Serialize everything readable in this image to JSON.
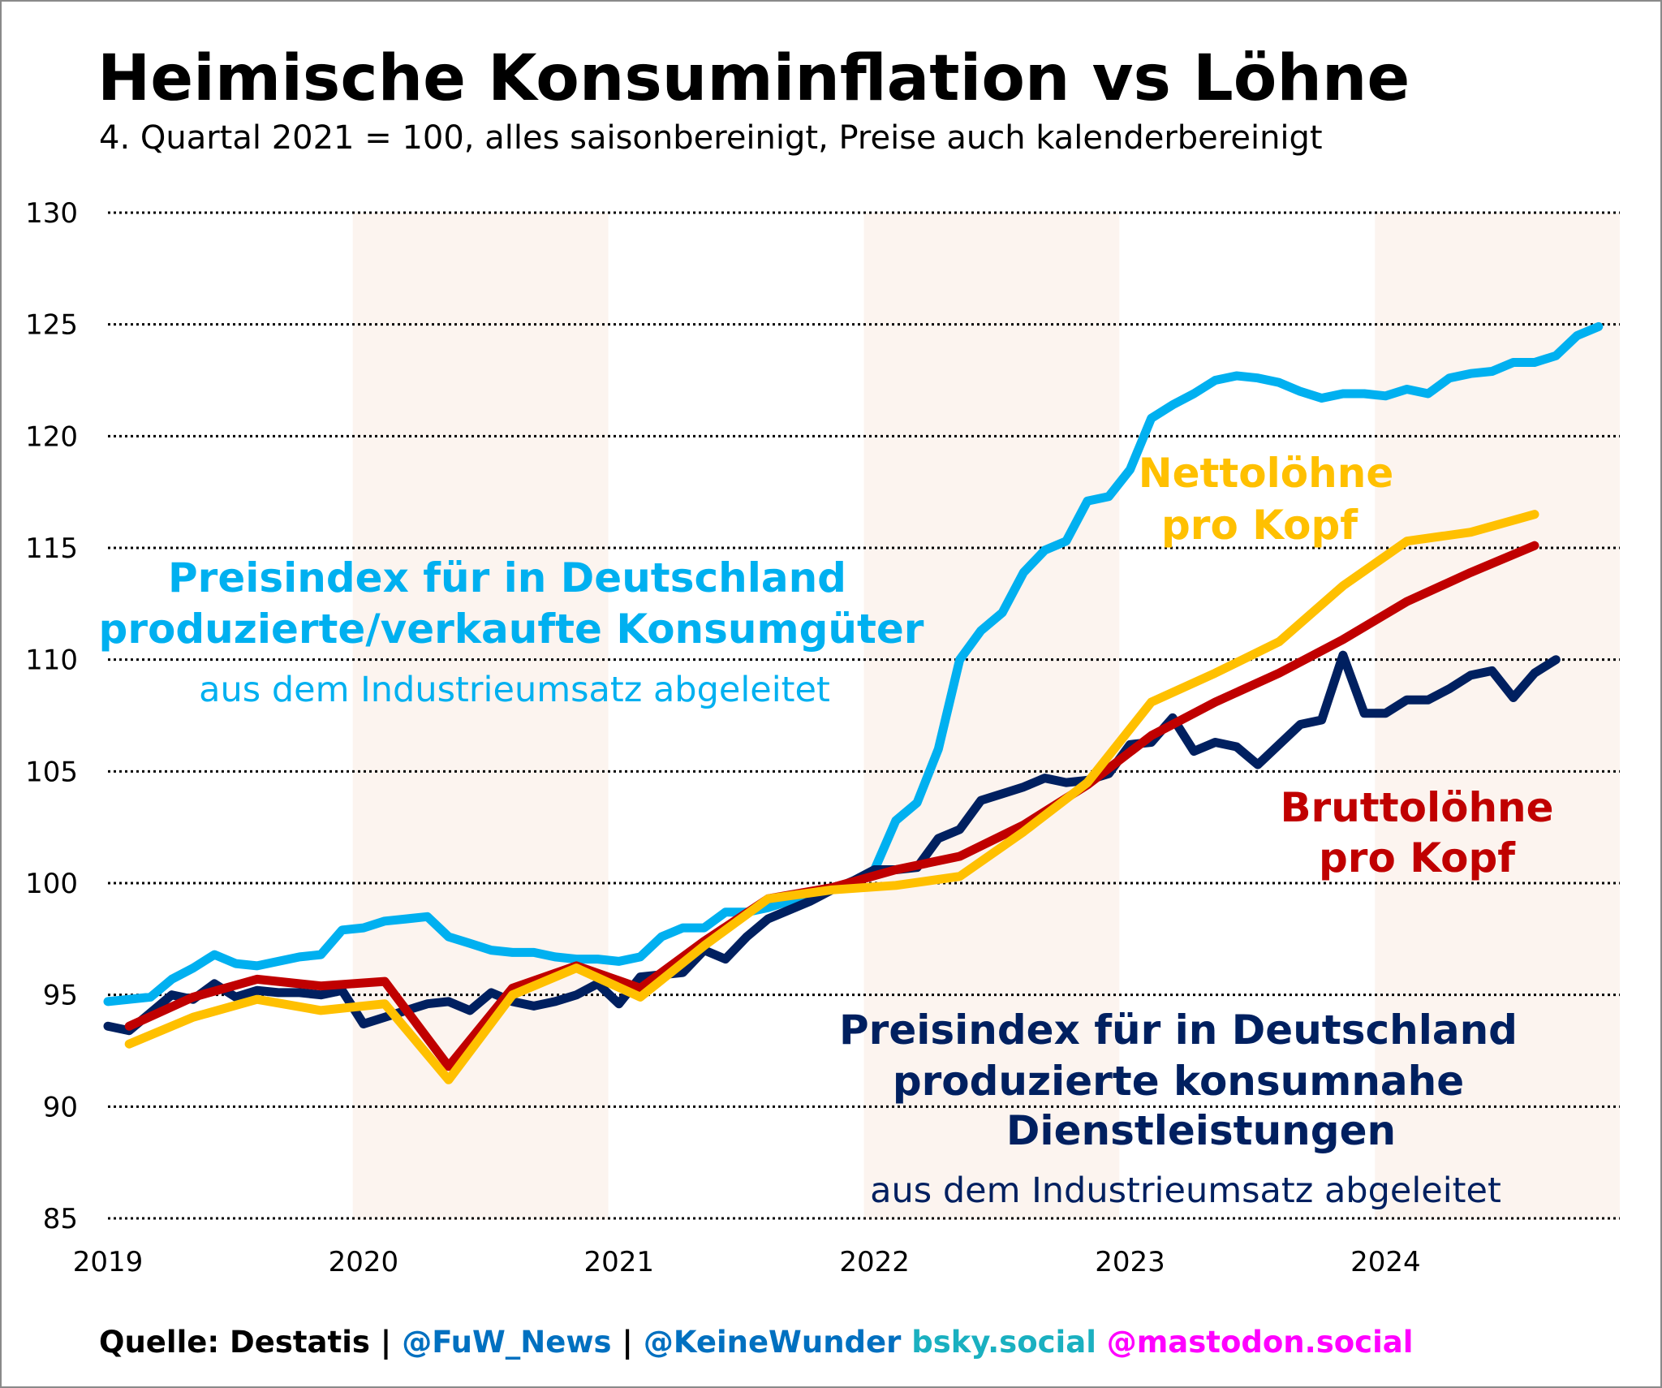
{
  "title": "Heimische Konsuminflation vs Löhne",
  "subtitle": "4. Quartal 2021 = 100, alles saisonbereinigt, Preise auch kalenderbereinigt",
  "footer": {
    "source": "Quelle: Destatis",
    "sep1": " | ",
    "handle1": "@FuW_News",
    "sep2": " | ",
    "handle2": "@KeineWunder",
    "bsky": " bsky.social",
    "mastodon": " @mastodon.social"
  },
  "colors": {
    "consumer_goods": "#00B0F0",
    "services": "#002060",
    "gross_wages": "#C00000",
    "net_wages": "#FFC000",
    "shading": "#FCF4EF",
    "handle": "#0070C0",
    "bsky": "#1AB0C0",
    "mastodon": "#FF00FF"
  },
  "annotations": {
    "consumer_goods": [
      "Preisindex für in Deutschland",
      "produzierte/verkaufte Konsumgüter",
      "aus dem Industrieumsatz abgeleitet"
    ],
    "net_wages": [
      "Nettolöhne",
      "pro Kopf"
    ],
    "gross_wages": [
      "Bruttolöhne",
      "pro Kopf"
    ],
    "services": [
      "Preisindex für in Deutschland",
      "produzierte konsumnahe",
      "Dienstleistungen",
      "aus dem Industrieumsatz abgeleitet"
    ]
  },
  "chart_data": {
    "type": "line",
    "title": "Heimische Konsuminflation vs Löhne",
    "subtitle": "4. Quartal 2021 = 100, alles saisonbereinigt, Preise auch kalenderbereinigt",
    "xlabel": "",
    "ylabel": "",
    "ylim": [
      85,
      130
    ],
    "yticks": [
      130,
      125,
      120,
      115,
      110,
      105,
      100,
      95,
      90,
      85
    ],
    "xticks": [
      "2019",
      "2020",
      "2021",
      "2022",
      "2023",
      "2024"
    ],
    "xlim": [
      "2019-01",
      "2024-12"
    ],
    "grid": "horizontal dotted",
    "shaded_years": [
      "2020",
      "2022",
      "2024"
    ],
    "series": [
      {
        "key": "consumer_goods",
        "frequency": "monthly",
        "x_first": "2019-01",
        "values": [
          94.7,
          94.8,
          94.9,
          95.7,
          96.2,
          96.8,
          96.4,
          96.3,
          96.5,
          96.7,
          96.8,
          97.9,
          98.0,
          98.3,
          98.4,
          98.5,
          97.6,
          97.3,
          97.0,
          96.9,
          96.9,
          96.7,
          96.6,
          96.6,
          96.5,
          96.7,
          97.6,
          98.0,
          98.0,
          98.7,
          98.7,
          98.9,
          99.2,
          99.5,
          99.8,
          100.0,
          100.6,
          102.8,
          103.6,
          106.0,
          110.0,
          111.3,
          112.1,
          113.9,
          114.9,
          115.3,
          117.1,
          117.3,
          118.5,
          120.8,
          121.4,
          121.9,
          122.5,
          122.7,
          122.6,
          122.4,
          122.0,
          121.7,
          121.9,
          121.9,
          121.8,
          122.1,
          121.9,
          122.6,
          122.8,
          122.9,
          123.3,
          123.3,
          123.6,
          124.5,
          124.9
        ]
      },
      {
        "key": "services",
        "frequency": "monthly",
        "x_first": "2019-01",
        "values": [
          93.6,
          93.4,
          94.2,
          95.0,
          94.8,
          95.5,
          94.9,
          95.2,
          95.1,
          95.1,
          95.0,
          95.2,
          93.7,
          94.0,
          94.3,
          94.6,
          94.7,
          94.3,
          95.1,
          94.7,
          94.5,
          94.7,
          95.0,
          95.5,
          94.6,
          95.8,
          95.9,
          96.0,
          97.0,
          96.6,
          97.6,
          98.4,
          98.8,
          99.2,
          99.7,
          100.1,
          100.6,
          100.6,
          100.7,
          102.0,
          102.4,
          103.7,
          104.0,
          104.3,
          104.7,
          104.5,
          104.6,
          104.9,
          106.2,
          106.3,
          107.4,
          105.9,
          106.3,
          106.1,
          105.3,
          106.2,
          107.1,
          107.3,
          110.2,
          107.6,
          107.6,
          108.2,
          108.2,
          108.7,
          109.3,
          109.5,
          108.3,
          109.4,
          110.0
        ]
      },
      {
        "key": "gross_wages",
        "frequency": "quarterly",
        "x_first": "2019-Q1",
        "values": [
          93.6,
          94.9,
          95.7,
          95.4,
          95.6,
          91.8,
          95.3,
          96.3,
          95.3,
          97.4,
          99.3,
          99.8,
          100.6,
          101.2,
          102.6,
          104.4,
          106.6,
          108.1,
          109.4,
          110.9,
          112.6,
          113.9,
          115.1
        ]
      },
      {
        "key": "net_wages",
        "frequency": "quarterly",
        "x_first": "2019-Q1",
        "values": [
          92.8,
          94.0,
          94.8,
          94.3,
          94.6,
          91.2,
          95.0,
          96.2,
          94.9,
          97.2,
          99.3,
          99.7,
          99.9,
          100.3,
          102.3,
          104.5,
          108.1,
          109.4,
          110.8,
          113.3,
          115.3,
          115.7,
          116.5
        ]
      }
    ]
  }
}
